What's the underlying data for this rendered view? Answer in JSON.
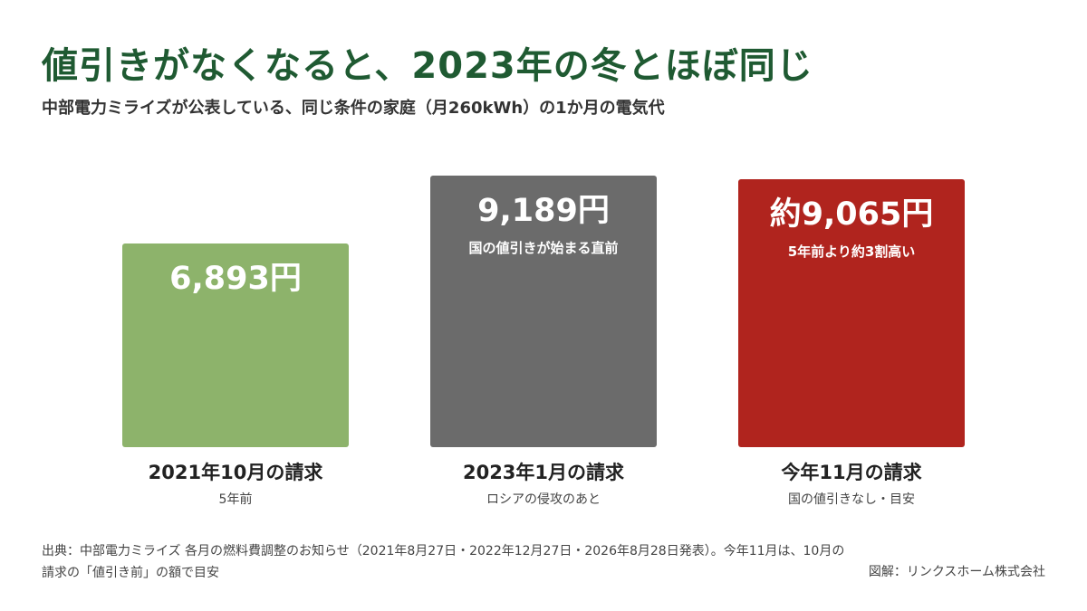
{
  "title": "値引きがなくなると、2023年の冬とほぼ同じ",
  "subtitle": "中部電力ミライズが公表している、同じ条件の家庭（月260kWh）の1か月の電気代",
  "chart_data": {
    "type": "bar",
    "title": "値引きがなくなると、2023年の冬とほぼ同じ",
    "subtitle": "中部電力ミライズが公表している、同じ条件の家庭（月260kWh）の1か月の電気代",
    "xlabel": "",
    "ylabel": "",
    "ylim": [
      0,
      9189
    ],
    "grid": false,
    "legend": "none",
    "categories": [
      "2021年10月の請求",
      "2023年1月の請求",
      "今年11月の請求"
    ],
    "category_notes": [
      "5年前",
      "ロシアの侵攻のあと",
      "国の値引きなし・目安"
    ],
    "values": [
      6893,
      9189,
      9065
    ],
    "value_labels": [
      "6,893円",
      "9,189円",
      "約9,065円"
    ],
    "bar_notes": [
      "",
      "国の値引きが始まる直前",
      "5年前より約3割高い"
    ],
    "colors": [
      "#8db36b",
      "#6b6b6b",
      "#b0241e"
    ]
  },
  "source": "出典：中部電力ミライズ 各月の燃料費調整のお知らせ（2021年8月27日・2022年12月27日・2026年8月28日発表）。今年11月は、10月の請求の「値引き前」の額で目安",
  "credit": "図解：リンクスホーム株式会社"
}
